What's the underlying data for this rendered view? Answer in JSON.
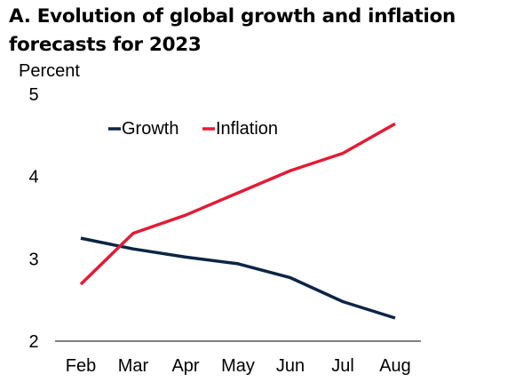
{
  "chart_data": {
    "type": "line",
    "title": "A. Evolution of global growth and inflation forecasts for 2023",
    "ylabel": "Percent",
    "xlabel": "",
    "categories": [
      "Feb",
      "Mar",
      "Apr",
      "May",
      "Jun",
      "Jul",
      "Aug"
    ],
    "ylim": [
      2,
      5
    ],
    "yticks": [
      2,
      3,
      4,
      5
    ],
    "grid": false,
    "legend_position": "top-left",
    "series": [
      {
        "name": "Growth",
        "color": "#0b2545",
        "values": [
          3.25,
          3.12,
          3.02,
          2.94,
          2.77,
          2.48,
          2.28
        ]
      },
      {
        "name": "Inflation",
        "color": "#e31b35",
        "values": [
          2.69,
          3.31,
          3.53,
          3.8,
          4.07,
          4.28,
          4.64
        ]
      }
    ]
  }
}
